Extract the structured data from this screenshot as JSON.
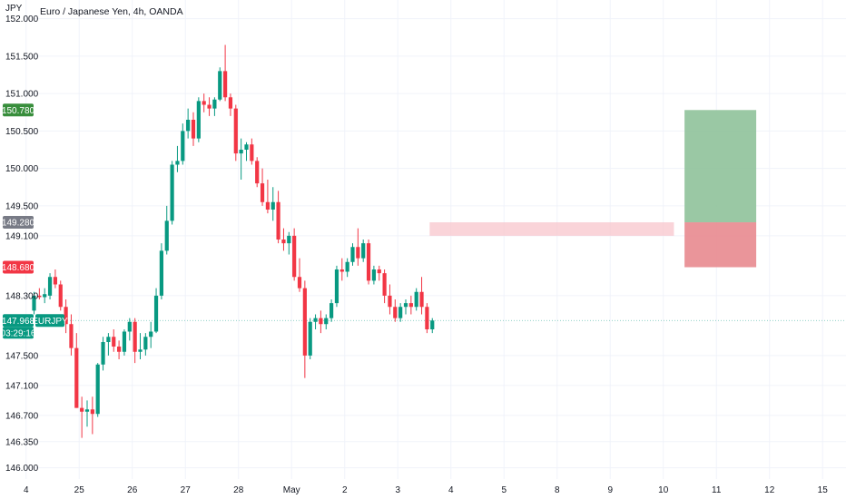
{
  "chart_data": {
    "type": "candlestick",
    "title": "Euro / Japanese Yen, 4h, OANDA",
    "currency": "JPY",
    "ylim": [
      145.85,
      152.25
    ],
    "y_ticks": [
      146.0,
      146.35,
      146.7,
      147.1,
      147.5,
      147.968,
      148.3,
      148.68,
      149.1,
      149.28,
      149.5,
      150.0,
      150.5,
      150.78,
      151.0,
      151.5,
      152.0
    ],
    "y_tick_labels": [
      "146.000",
      "146.350",
      "146.700",
      "147.100",
      "147.500",
      "",
      "148.300",
      "",
      "149.100",
      "",
      "149.500",
      "150.000",
      "150.500",
      "",
      "151.000",
      "151.500",
      "152.000"
    ],
    "x_day_ticks": [
      {
        "i": -1.5,
        "label": "4"
      },
      {
        "i": 8.5,
        "label": "25"
      },
      {
        "i": 18.5,
        "label": "26"
      },
      {
        "i": 28.5,
        "label": "27"
      },
      {
        "i": 38.5,
        "label": "28"
      },
      {
        "i": 48.5,
        "label": "May"
      },
      {
        "i": 58.5,
        "label": "2"
      },
      {
        "i": 68.5,
        "label": "3"
      },
      {
        "i": 78.5,
        "label": "4"
      },
      {
        "i": 88.5,
        "label": "5"
      },
      {
        "i": 98.5,
        "label": "8"
      },
      {
        "i": 108.5,
        "label": "9"
      },
      {
        "i": 118.5,
        "label": "10"
      },
      {
        "i": 128.5,
        "label": "11"
      },
      {
        "i": 138.5,
        "label": "12"
      },
      {
        "i": 148.5,
        "label": "15"
      }
    ],
    "candles": [
      [
        148.1,
        148.35,
        148.05,
        148.3
      ],
      [
        148.3,
        148.4,
        148.25,
        148.28
      ],
      [
        148.28,
        148.4,
        148.2,
        148.32
      ],
      [
        148.3,
        148.6,
        148.25,
        148.55
      ],
      [
        148.55,
        148.65,
        148.4,
        148.45
      ],
      [
        148.45,
        148.5,
        148.1,
        148.15
      ],
      [
        148.15,
        148.25,
        147.8,
        147.92
      ],
      [
        147.92,
        148.05,
        147.5,
        147.6
      ],
      [
        147.6,
        147.8,
        146.8,
        146.8
      ],
      [
        146.8,
        146.95,
        146.4,
        146.75
      ],
      [
        146.75,
        146.9,
        146.55,
        146.78
      ],
      [
        146.78,
        146.95,
        146.45,
        146.72
      ],
      [
        146.72,
        147.4,
        146.68,
        147.38
      ],
      [
        147.38,
        147.75,
        147.3,
        147.68
      ],
      [
        147.68,
        147.8,
        147.5,
        147.75
      ],
      [
        147.75,
        147.85,
        147.55,
        147.62
      ],
      [
        147.62,
        147.7,
        147.45,
        147.55
      ],
      [
        147.55,
        147.85,
        147.5,
        147.82
      ],
      [
        147.82,
        148.0,
        147.7,
        147.95
      ],
      [
        147.95,
        148.0,
        147.4,
        147.55
      ],
      [
        147.55,
        147.8,
        147.45,
        147.58
      ],
      [
        147.58,
        147.8,
        147.5,
        147.75
      ],
      [
        147.75,
        147.95,
        147.6,
        147.82
      ],
      [
        147.82,
        148.4,
        147.8,
        148.3
      ],
      [
        148.3,
        149.0,
        148.25,
        148.9
      ],
      [
        148.9,
        149.5,
        148.85,
        149.3
      ],
      [
        149.3,
        150.1,
        149.25,
        150.05
      ],
      [
        150.05,
        150.3,
        149.95,
        150.1
      ],
      [
        150.1,
        150.6,
        150.05,
        150.5
      ],
      [
        150.5,
        150.8,
        150.4,
        150.65
      ],
      [
        150.65,
        150.75,
        150.3,
        150.4
      ],
      [
        150.4,
        150.95,
        150.35,
        150.9
      ],
      [
        150.9,
        151.0,
        150.75,
        150.85
      ],
      [
        150.85,
        150.95,
        150.7,
        150.8
      ],
      [
        150.8,
        150.95,
        150.7,
        150.92
      ],
      [
        150.92,
        151.35,
        150.9,
        151.3
      ],
      [
        151.3,
        151.65,
        150.9,
        150.95
      ],
      [
        150.95,
        151.0,
        150.7,
        150.8
      ],
      [
        150.8,
        150.85,
        150.1,
        150.2
      ],
      [
        150.2,
        150.4,
        149.85,
        150.25
      ],
      [
        150.25,
        150.35,
        150.1,
        150.32
      ],
      [
        150.32,
        150.4,
        150.05,
        150.1
      ],
      [
        150.1,
        150.15,
        149.75,
        149.8
      ],
      [
        149.8,
        150.0,
        149.5,
        149.55
      ],
      [
        149.55,
        149.85,
        149.4,
        149.45
      ],
      [
        149.45,
        149.75,
        149.3,
        149.55
      ],
      [
        149.55,
        149.7,
        149.0,
        149.05
      ],
      [
        149.05,
        149.2,
        148.9,
        149.0
      ],
      [
        149.0,
        149.15,
        148.85,
        149.1
      ],
      [
        149.1,
        149.2,
        148.5,
        148.55
      ],
      [
        148.55,
        148.8,
        148.35,
        148.4
      ],
      [
        148.4,
        148.5,
        147.2,
        147.5
      ],
      [
        147.5,
        148.0,
        147.45,
        147.95
      ],
      [
        147.95,
        148.05,
        147.85,
        148.0
      ],
      [
        148.0,
        148.1,
        147.8,
        147.92
      ],
      [
        147.92,
        148.05,
        147.85,
        148.0
      ],
      [
        148.0,
        148.25,
        147.95,
        148.2
      ],
      [
        148.2,
        148.7,
        148.15,
        148.65
      ],
      [
        148.65,
        148.8,
        148.5,
        148.62
      ],
      [
        148.62,
        148.8,
        148.55,
        148.75
      ],
      [
        148.75,
        149.0,
        148.7,
        148.95
      ],
      [
        148.95,
        149.2,
        148.7,
        148.8
      ],
      [
        148.8,
        149.05,
        148.75,
        149.0
      ],
      [
        149.0,
        149.05,
        148.45,
        148.5
      ],
      [
        148.5,
        148.7,
        148.45,
        148.65
      ],
      [
        148.65,
        148.7,
        148.5,
        148.6
      ],
      [
        148.6,
        148.65,
        148.2,
        148.3
      ],
      [
        148.3,
        148.45,
        148.05,
        148.15
      ],
      [
        148.15,
        148.25,
        147.95,
        148.0
      ],
      [
        148.0,
        148.2,
        147.95,
        148.15
      ],
      [
        148.15,
        148.25,
        148.05,
        148.2
      ],
      [
        148.2,
        148.3,
        148.05,
        148.15
      ],
      [
        148.15,
        148.4,
        148.1,
        148.35
      ],
      [
        148.35,
        148.55,
        148.05,
        148.15
      ],
      [
        148.15,
        148.2,
        147.8,
        147.85
      ],
      [
        147.85,
        148.0,
        147.8,
        147.968
      ]
    ],
    "candle_start_index": 0,
    "colors": {
      "up": "#089981",
      "down": "#f23645",
      "grid": "#f0f3fa",
      "text": "#131722",
      "last_line": "#089981"
    },
    "zone": {
      "label": "resistance-zone",
      "y_top": 149.28,
      "y_bottom": 149.1,
      "i_start": 74.5,
      "i_end": 120.5,
      "color": "#f8c6cc"
    },
    "position": {
      "entry": 149.28,
      "target": 150.78,
      "stop": 148.68,
      "i_start": 122.5,
      "i_end": 136.0,
      "profit_color": "#8fc29a",
      "loss_color": "#e88a8f"
    },
    "price_tags": [
      {
        "value": 150.78,
        "label": "150.780",
        "color": "#388e3c"
      },
      {
        "value": 149.28,
        "label": "149.280",
        "color": "#787b86"
      },
      {
        "value": 148.68,
        "label": "148.680",
        "color": "#f23645"
      },
      {
        "value": 147.968,
        "label": "147.968",
        "color": "#089981"
      }
    ],
    "last_price": {
      "value": 147.968,
      "label": "147.968",
      "symbol": "EURJPY",
      "countdown": "03:29:16"
    }
  }
}
